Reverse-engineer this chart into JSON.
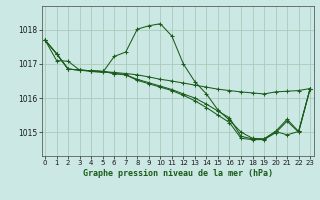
{
  "title": "Graphe pression niveau de la mer (hPa)",
  "bg": "#cce8e4",
  "grid_color": "#aaccbb",
  "lc": "#1a5c1a",
  "ylim": [
    1014.3,
    1018.7
  ],
  "xlim": [
    -0.3,
    23.3
  ],
  "yticks": [
    1015,
    1016,
    1017,
    1018
  ],
  "xticks": [
    0,
    1,
    2,
    3,
    4,
    5,
    6,
    7,
    8,
    9,
    10,
    11,
    12,
    13,
    14,
    15,
    16,
    17,
    18,
    19,
    20,
    21,
    22,
    23
  ],
  "series": [
    {
      "x": [
        0,
        1,
        2,
        3,
        4,
        5,
        6,
        7,
        8,
        9,
        10,
        11,
        12,
        13,
        14,
        15,
        16,
        17,
        18,
        19,
        20,
        21,
        22,
        23
      ],
      "y": [
        1017.7,
        1017.3,
        1016.85,
        1016.82,
        1016.8,
        1016.78,
        1016.75,
        1016.72,
        1016.68,
        1016.62,
        1016.55,
        1016.5,
        1016.44,
        1016.38,
        1016.32,
        1016.26,
        1016.22,
        1016.18,
        1016.15,
        1016.12,
        1016.18,
        1016.2,
        1016.22,
        1016.28
      ]
    },
    {
      "x": [
        0,
        1,
        2,
        3,
        4,
        5,
        6,
        7,
        8,
        9,
        10,
        11,
        12,
        13,
        14,
        15,
        16,
        17,
        18,
        19,
        20,
        21,
        22,
        23
      ],
      "y": [
        1017.7,
        1017.3,
        1016.85,
        1016.82,
        1016.8,
        1016.78,
        1016.72,
        1016.68,
        1016.55,
        1016.45,
        1016.35,
        1016.25,
        1016.12,
        1016.0,
        1015.82,
        1015.62,
        1015.42,
        1014.88,
        1014.8,
        1014.8,
        1015.02,
        1014.92,
        1015.02,
        1016.28
      ]
    },
    {
      "x": [
        0,
        1,
        2,
        3,
        4,
        5,
        6,
        7,
        8,
        9,
        10,
        11,
        12,
        13,
        14,
        15,
        16,
        17,
        18,
        19,
        20,
        21,
        22,
        23
      ],
      "y": [
        1017.7,
        1017.3,
        1016.85,
        1016.82,
        1016.8,
        1016.78,
        1016.72,
        1016.68,
        1016.52,
        1016.42,
        1016.32,
        1016.22,
        1016.08,
        1015.92,
        1015.72,
        1015.5,
        1015.28,
        1014.82,
        1014.78,
        1014.78,
        1014.98,
        1015.32,
        1015.0,
        1016.28
      ]
    },
    {
      "x": [
        0,
        1,
        2,
        3,
        4,
        5,
        6,
        7,
        8,
        9,
        10,
        11,
        12,
        13,
        14,
        15,
        16,
        17,
        18,
        19,
        20,
        21,
        22,
        23
      ],
      "y": [
        1017.7,
        1017.1,
        1017.08,
        1016.82,
        1016.78,
        1016.75,
        1017.22,
        1017.35,
        1018.02,
        1018.12,
        1018.18,
        1017.82,
        1017.0,
        1016.48,
        1016.12,
        1015.65,
        1015.35,
        1015.0,
        1014.82,
        1014.8,
        1015.02,
        1015.38,
        1015.02,
        1016.28
      ]
    }
  ]
}
